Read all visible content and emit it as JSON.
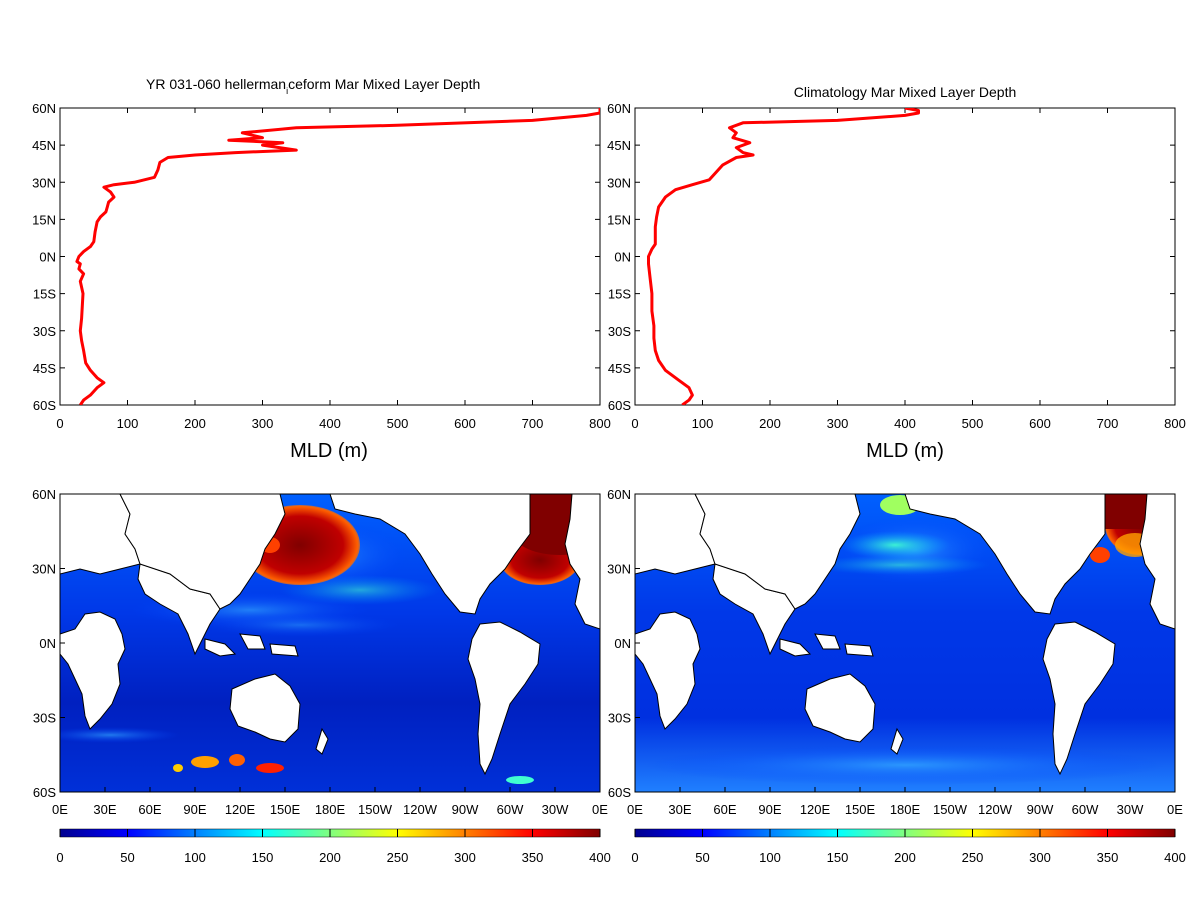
{
  "chart_data": [
    {
      "type": "line",
      "title_main": "YR 031-060 hellerman",
      "title_sub": "i",
      "title_rest": "ceform Mar Mixed Layer Depth",
      "xlabel": "MLD (m)",
      "ylabel": "",
      "xlim": [
        0,
        800
      ],
      "ylim": [
        -60,
        60
      ],
      "x_ticks": [
        "0",
        "100",
        "200",
        "300",
        "400",
        "500",
        "600",
        "700",
        "800"
      ],
      "y_ticks": [
        "60N",
        "45N",
        "30N",
        "15N",
        "0N",
        "15S",
        "30S",
        "45S",
        "60S"
      ],
      "line_color": "#ff0000",
      "points": [
        [
          30,
          -60
        ],
        [
          35,
          -58
        ],
        [
          45,
          -56
        ],
        [
          55,
          -53
        ],
        [
          65,
          -51
        ],
        [
          55,
          -49
        ],
        [
          45,
          -46
        ],
        [
          38,
          -43
        ],
        [
          35,
          -38
        ],
        [
          32,
          -34
        ],
        [
          30,
          -30
        ],
        [
          32,
          -25
        ],
        [
          33,
          -20
        ],
        [
          34,
          -15
        ],
        [
          30,
          -10
        ],
        [
          35,
          -7
        ],
        [
          28,
          -5
        ],
        [
          30,
          -3
        ],
        [
          25,
          -2
        ],
        [
          28,
          0
        ],
        [
          35,
          2
        ],
        [
          45,
          4
        ],
        [
          50,
          6
        ],
        [
          52,
          10
        ],
        [
          55,
          14
        ],
        [
          60,
          16
        ],
        [
          68,
          18
        ],
        [
          70,
          20
        ],
        [
          72,
          22
        ],
        [
          80,
          24
        ],
        [
          75,
          26
        ],
        [
          65,
          28
        ],
        [
          80,
          29
        ],
        [
          110,
          30
        ],
        [
          140,
          32
        ],
        [
          145,
          35
        ],
        [
          148,
          38
        ],
        [
          160,
          40
        ],
        [
          200,
          41
        ],
        [
          260,
          42
        ],
        [
          350,
          43
        ],
        [
          300,
          45
        ],
        [
          330,
          46
        ],
        [
          250,
          47
        ],
        [
          300,
          48
        ],
        [
          270,
          50
        ],
        [
          350,
          52
        ],
        [
          500,
          53
        ],
        [
          700,
          55
        ],
        [
          780,
          57
        ],
        [
          800,
          58
        ],
        [
          800,
          60
        ]
      ]
    },
    {
      "type": "line",
      "title": "Climatology Mar Mixed Layer Depth",
      "xlabel": "MLD (m)",
      "ylabel": "",
      "xlim": [
        0,
        800
      ],
      "ylim": [
        -60,
        60
      ],
      "x_ticks": [
        "0",
        "100",
        "200",
        "300",
        "400",
        "500",
        "600",
        "700",
        "800"
      ],
      "y_ticks": [
        "60N",
        "45N",
        "30N",
        "15N",
        "0N",
        "15S",
        "30S",
        "45S",
        "60S"
      ],
      "line_color": "#ff0000",
      "points": [
        [
          70,
          -60
        ],
        [
          80,
          -58
        ],
        [
          85,
          -56
        ],
        [
          80,
          -53
        ],
        [
          65,
          -50
        ],
        [
          45,
          -46
        ],
        [
          35,
          -42
        ],
        [
          30,
          -38
        ],
        [
          28,
          -33
        ],
        [
          28,
          -28
        ],
        [
          25,
          -22
        ],
        [
          25,
          -15
        ],
        [
          22,
          -8
        ],
        [
          20,
          -3
        ],
        [
          20,
          0
        ],
        [
          25,
          3
        ],
        [
          30,
          5
        ],
        [
          30,
          8
        ],
        [
          30,
          12
        ],
        [
          32,
          16
        ],
        [
          35,
          20
        ],
        [
          45,
          24
        ],
        [
          60,
          27
        ],
        [
          85,
          29
        ],
        [
          110,
          31
        ],
        [
          120,
          34
        ],
        [
          130,
          37
        ],
        [
          150,
          40
        ],
        [
          175,
          41
        ],
        [
          160,
          42
        ],
        [
          150,
          44
        ],
        [
          170,
          46
        ],
        [
          145,
          48
        ],
        [
          150,
          50
        ],
        [
          140,
          52
        ],
        [
          160,
          54
        ],
        [
          300,
          55
        ],
        [
          400,
          57
        ],
        [
          420,
          58
        ],
        [
          420,
          59
        ],
        [
          400,
          60
        ]
      ]
    },
    {
      "type": "heatmap",
      "x_ticks": [
        "0E",
        "30E",
        "60E",
        "90E",
        "120E",
        "150E",
        "180E",
        "150W",
        "120W",
        "90W",
        "60W",
        "30W",
        "0E"
      ],
      "y_ticks": [
        "60N",
        "30N",
        "0N",
        "30S",
        "60S"
      ],
      "xlim": [
        0,
        360
      ],
      "ylim": [
        -60,
        60
      ],
      "colorbar_ticks": [
        "0",
        "50",
        "100",
        "150",
        "200",
        "250",
        "300",
        "350",
        "400"
      ],
      "colorbar_range": [
        0,
        400
      ]
    },
    {
      "type": "heatmap",
      "x_ticks": [
        "0E",
        "30E",
        "60E",
        "90E",
        "120E",
        "150E",
        "180E",
        "150W",
        "120W",
        "90W",
        "60W",
        "30W",
        "0E"
      ],
      "y_ticks": [
        "60N",
        "30N",
        "0N",
        "30S",
        "60S"
      ],
      "xlim": [
        0,
        360
      ],
      "ylim": [
        -60,
        60
      ],
      "colorbar_ticks": [
        "0",
        "50",
        "100",
        "150",
        "200",
        "250",
        "300",
        "350",
        "400"
      ],
      "colorbar_range": [
        0,
        400
      ]
    }
  ],
  "colors": {
    "ocean_low": "#00008f",
    "ocean_mid": "#0050ff",
    "land": "#ffffff",
    "deep_red": "#800000"
  }
}
